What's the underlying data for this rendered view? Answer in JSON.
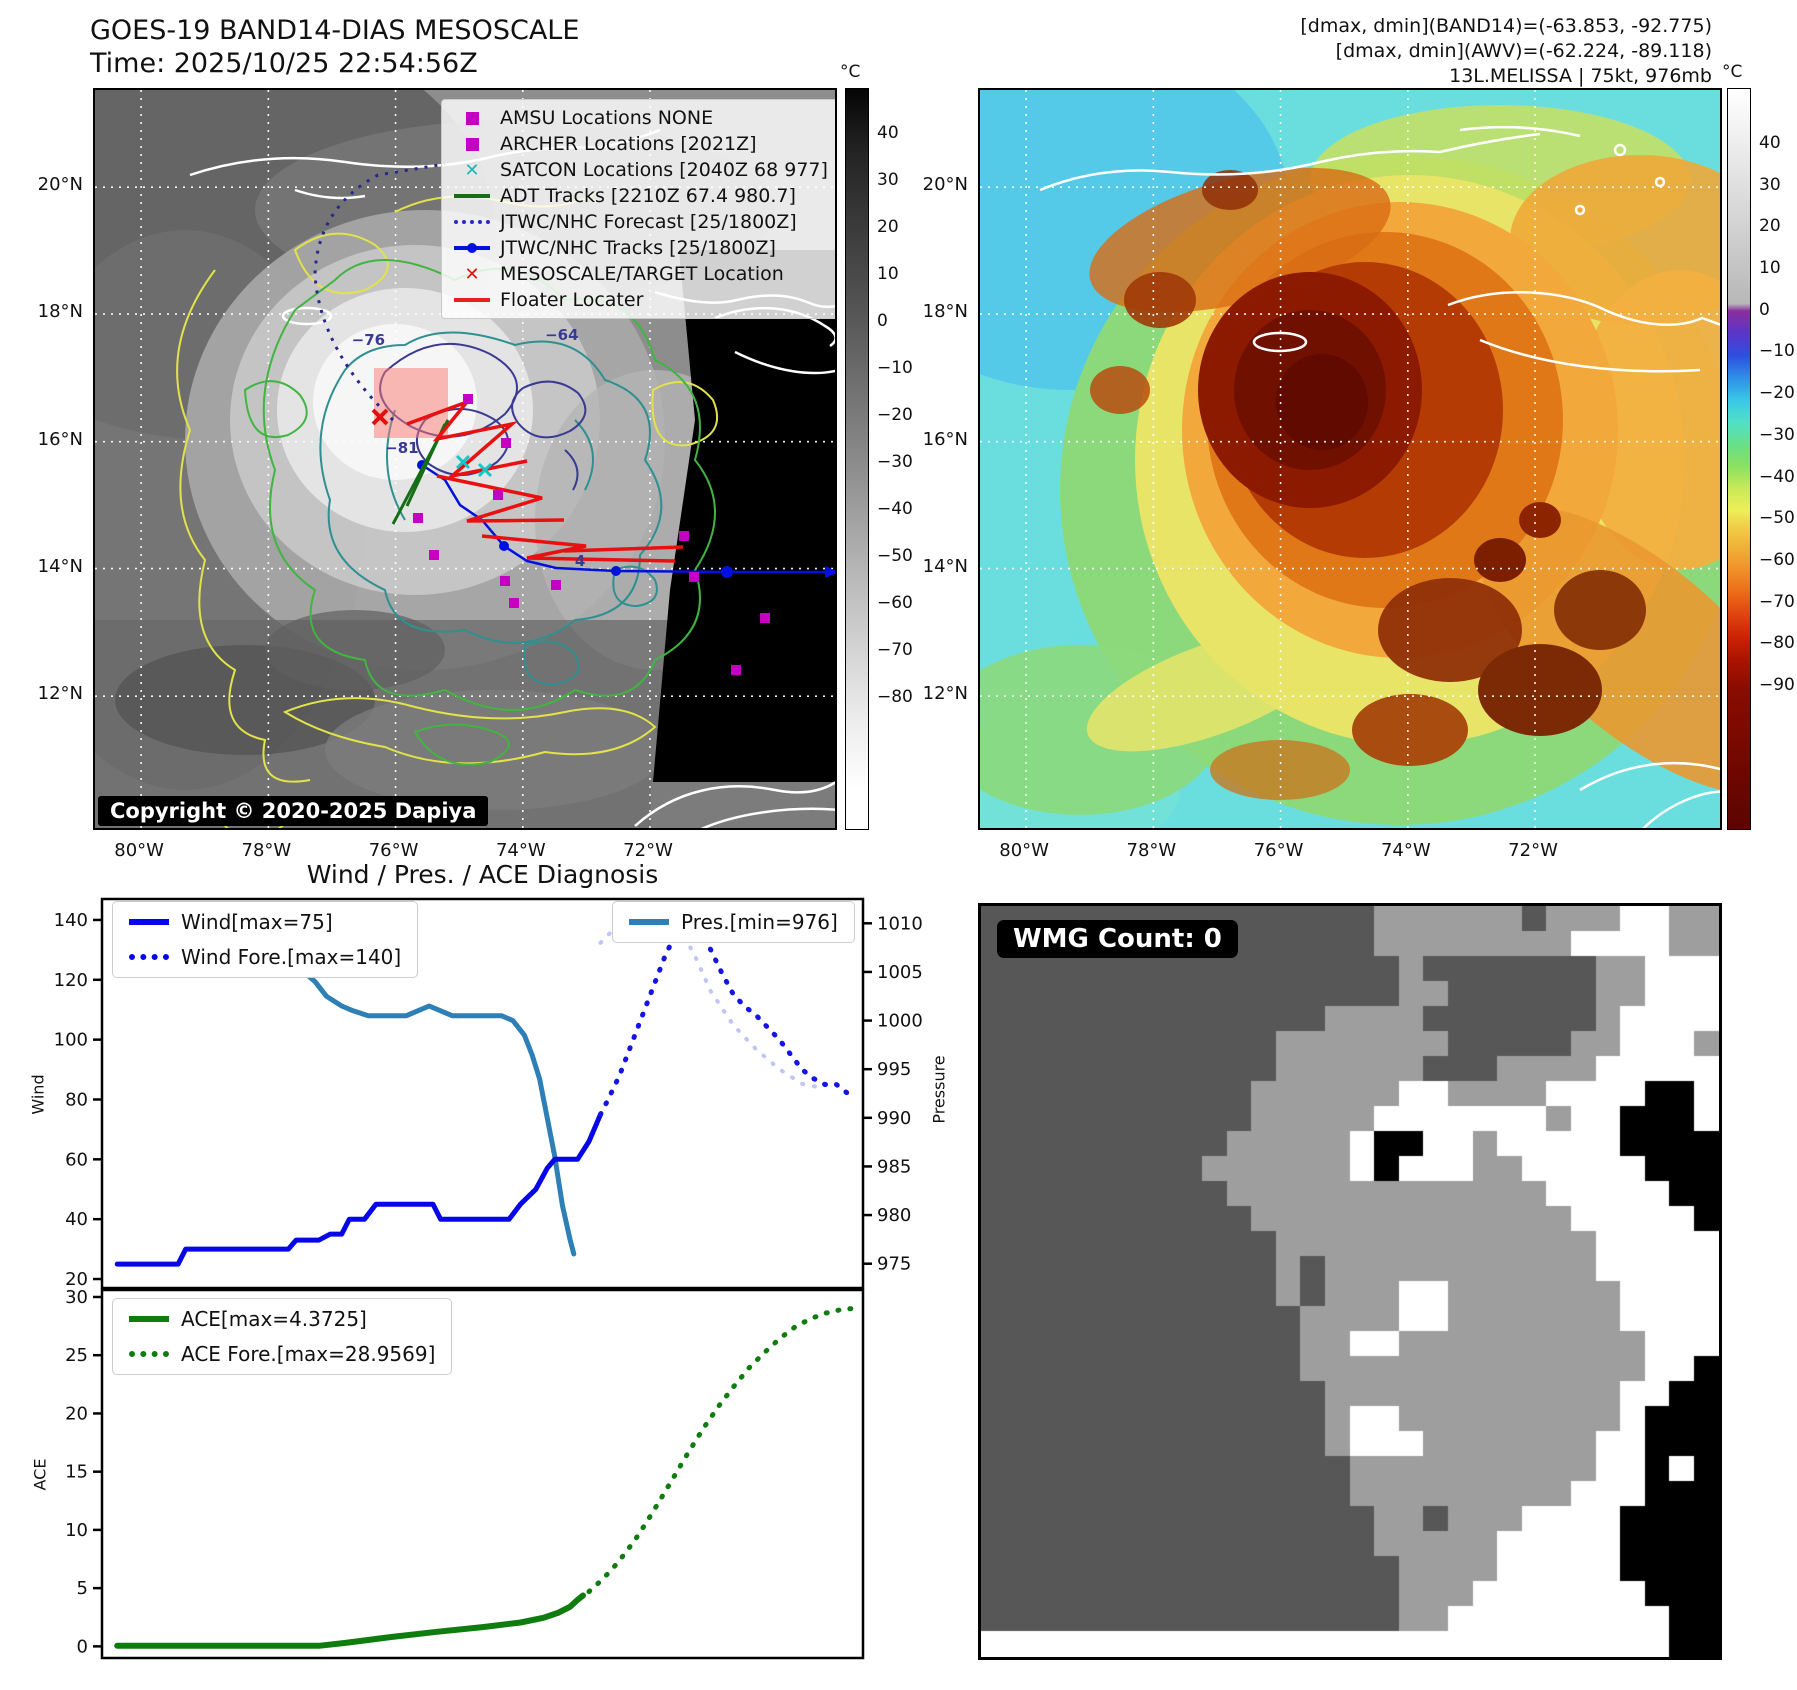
{
  "header": {
    "title_line1": "GOES-19 BAND14-DIAS MESOSCALE",
    "title_line2": "Time: 2025/10/25 22:54:56Z",
    "info_line1": "[dmax, dmin](BAND14)=(-63.853, -92.775)",
    "info_line2": "[dmax, dmin](AWV)=(-62.224, -89.118)",
    "info_line3": "13L.MELISSA | 75kt, 976mb"
  },
  "left_map": {
    "lat_ticks": [
      "20°N",
      "18°N",
      "16°N",
      "14°N",
      "12°N"
    ],
    "lon_ticks": [
      "80°W",
      "78°W",
      "76°W",
      "74°W",
      "72°W"
    ],
    "copyright": "Copyright © 2020-2025 Dapiya",
    "colorbar_title": "°C",
    "colorbar_ticks": [
      "40",
      "30",
      "20",
      "10",
      "0",
      "−10",
      "−20",
      "−30",
      "−40",
      "−50",
      "−60",
      "−70",
      "−80"
    ],
    "legend": [
      {
        "marker": "square",
        "color": "#c400c4",
        "label": "AMSU Locations NONE"
      },
      {
        "marker": "square",
        "color": "#c400c4",
        "label": "ARCHER Locations [2021Z]"
      },
      {
        "marker": "x",
        "color": "#18b8b8",
        "label": "SATCON Locations [2040Z 68 977]"
      },
      {
        "marker": "line",
        "color": "#156e15",
        "label": "ADT Tracks [2210Z 67.4 980.7]"
      },
      {
        "marker": "dashline",
        "color": "#2828c8",
        "label": "JTWC/NHC Forecast [25/1800Z]"
      },
      {
        "marker": "linedot",
        "color": "#0010dd",
        "label": "JTWC/NHC Tracks [25/1800Z]"
      },
      {
        "marker": "x",
        "color": "#e01010",
        "label": "MESOSCALE/TARGET Location"
      },
      {
        "marker": "line",
        "color": "#e82020",
        "label": "Floater Locater"
      }
    ],
    "contour_labels": [
      {
        "text": "−76",
        "fx": 0.345,
        "fy": 0.325
      },
      {
        "text": "−81",
        "fx": 0.39,
        "fy": 0.47
      },
      {
        "text": "−64",
        "fx": 0.605,
        "fy": 0.318
      },
      {
        "text": "4",
        "fx": 0.645,
        "fy": 0.623
      }
    ]
  },
  "right_map": {
    "lat_ticks": [
      "20°N",
      "18°N",
      "16°N",
      "14°N",
      "12°N"
    ],
    "lon_ticks": [
      "80°W",
      "78°W",
      "76°W",
      "74°W",
      "72°W"
    ],
    "colorbar_title": "°C",
    "colorbar_ticks": [
      "40",
      "30",
      "20",
      "10",
      "0",
      "−10",
      "−20",
      "−30",
      "−40",
      "−50",
      "−60",
      "−70",
      "−80",
      "−90"
    ]
  },
  "charts": {
    "section_title": "Wind / Pres. / ACE Diagnosis"
  },
  "wmg": {
    "header": "WMG Count: 0",
    "palette": {
      "d": "#575757",
      "m": "#9e9e9e",
      "w": "#ffffff",
      "b": "#000000"
    },
    "grid": [
      "ddddddddddddddddmmmmmmdmmmwwmm",
      "ddddddddddddddddmmmmmmmmwwwwmm",
      "dddddddddddddddddmdddddddmmwww",
      "dddddddddddddddddmmddddddmmwww",
      "ddddddddddddddmmmmdddddddmwwww",
      "ddddddddddddmmmmmmmdddddmmwwwm",
      "ddddddddddddmmmmmmdddmmmmwwwww",
      "dddddddddddmmmmmmwwmmmmwwwwbbw",
      "dddddddddddmmmmmwwwwwwwmwwbbbw",
      "ddddddddddmmmmmwbbwwmwwwwwbbbb",
      "dddddddddmmmmmmwbwwwmmwwwwwbbb",
      "ddddddddddmmmmmmmmmmmmmwwwwwbb",
      "dddddddddddmmmmmmmmmmmmmwwwwwb",
      "ddddddddddddmmmmmmmmmmmmmwwwww",
      "ddddddddddddmdmmmmmmmmmmmwwwww",
      "ddddddddddddmdmmmwwmmmmmmmwwww",
      "dddddddddddddmmmmwwmmmmmmmwwww",
      "dddddddddddddmmwwmmmmmmmmmmwww",
      "dddddddddddddmmmmmmmmmmmmmmwwb",
      "ddddddddddddddmmmmmmmmmmmmwwbb",
      "ddddddddddddddmwwmmmmmmmmmwbbb",
      "ddddddddddddddmwwwmmmmmmmwwbbb",
      "dddddddddddddddmmmmmmmmmmwwbwb",
      "dddddddddddddddmmmmmmmmmwwwbbb",
      "ddddddddddddddddmmdmmmwwwwbbbb",
      "ddddddddddddddddmmmmmwwwwwbbbb",
      "dddddddddddddddddmmmmwwwwwbbbb",
      "dddddddddddddddddmmmwwwwwwwbbb",
      "dddddddddddddddddmmwwwwwwwwwbb",
      "wwwwwwwwwwwwwwwwwwwwwwwwwwwwbb"
    ]
  },
  "chart_data": [
    {
      "type": "line",
      "title": "Wind / Pres. / ACE Diagnosis",
      "x_range": [
        0,
        1
      ],
      "axes": {
        "left": {
          "label": "Wind",
          "lim": [
            17,
            147
          ],
          "ticks": [
            20,
            40,
            60,
            80,
            100,
            120,
            140
          ]
        },
        "right": {
          "label": "Pressure",
          "lim": [
            972.5,
            1012.5
          ],
          "ticks": [
            975,
            980,
            985,
            990,
            995,
            1000,
            1005,
            1010
          ]
        }
      },
      "legend_left": [
        {
          "label": "Wind[max=75]",
          "color": "#0606e8",
          "style": "solid"
        },
        {
          "label": "Wind Fore.[max=140]",
          "color": "#0606e8",
          "style": "dotted"
        }
      ],
      "legend_right": [
        {
          "label": "Pres.[min=976]",
          "color": "#2d7fb5",
          "style": "solid"
        }
      ],
      "series": [
        {
          "name": "Pres.",
          "axis": "right",
          "color": "#2d7fb5",
          "dash": "none",
          "width": 5,
          "opacity": 1,
          "points": [
            [
              0.02,
              1010.5
            ],
            [
              0.115,
              1010.5
            ],
            [
              0.125,
              1009
            ],
            [
              0.165,
              1009
            ],
            [
              0.175,
              1008
            ],
            [
              0.21,
              1008
            ],
            [
              0.22,
              1007
            ],
            [
              0.245,
              1006
            ],
            [
              0.265,
              1005
            ],
            [
              0.28,
              1004
            ],
            [
              0.295,
              1002.5
            ],
            [
              0.315,
              1001.5
            ],
            [
              0.33,
              1001
            ],
            [
              0.35,
              1000.5
            ],
            [
              0.4,
              1000.5
            ],
            [
              0.415,
              1001
            ],
            [
              0.43,
              1001.5
            ],
            [
              0.445,
              1001
            ],
            [
              0.46,
              1000.5
            ],
            [
              0.525,
              1000.5
            ],
            [
              0.54,
              1000
            ],
            [
              0.555,
              998.5
            ],
            [
              0.565,
              996.5
            ],
            [
              0.575,
              994
            ],
            [
              0.585,
              990
            ],
            [
              0.595,
              986
            ],
            [
              0.605,
              981
            ],
            [
              0.615,
              977.5
            ],
            [
              0.62,
              976
            ]
          ]
        },
        {
          "name": "Pres. Fore.",
          "axis": "right",
          "color": "#b4bcf4",
          "dash": "dot",
          "width": 4,
          "opacity": 0.85,
          "points": [
            [
              0.655,
              1008
            ],
            [
              0.68,
              1010
            ],
            [
              0.7,
              1011
            ],
            [
              0.72,
              1011.5
            ],
            [
              0.74,
              1011
            ],
            [
              0.76,
              1009.5
            ],
            [
              0.78,
              1006.5
            ],
            [
              0.8,
              1003
            ],
            [
              0.83,
              999.5
            ],
            [
              0.86,
              997
            ],
            [
              0.89,
              995
            ],
            [
              0.92,
              993.5
            ],
            [
              0.95,
              993
            ]
          ]
        },
        {
          "name": "Wind",
          "axis": "left",
          "color": "#0606e8",
          "dash": "none",
          "width": 5,
          "opacity": 1,
          "points": [
            [
              0.02,
              25
            ],
            [
              0.1,
              25
            ],
            [
              0.11,
              30
            ],
            [
              0.245,
              30
            ],
            [
              0.255,
              33
            ],
            [
              0.285,
              33
            ],
            [
              0.3,
              35
            ],
            [
              0.315,
              35
            ],
            [
              0.325,
              40
            ],
            [
              0.345,
              40
            ],
            [
              0.36,
              45
            ],
            [
              0.435,
              45
            ],
            [
              0.445,
              40
            ],
            [
              0.535,
              40
            ],
            [
              0.55,
              45
            ],
            [
              0.57,
              50
            ],
            [
              0.585,
              57
            ],
            [
              0.595,
              60
            ],
            [
              0.625,
              60
            ],
            [
              0.64,
              66
            ],
            [
              0.65,
              72
            ],
            [
              0.655,
              75
            ]
          ]
        },
        {
          "name": "Wind Fore.",
          "axis": "left",
          "color": "#1414e6",
          "dash": "dot",
          "width": 5,
          "opacity": 1,
          "points": [
            [
              0.655,
              75
            ],
            [
              0.665,
              80
            ],
            [
              0.68,
              88
            ],
            [
              0.695,
              98
            ],
            [
              0.71,
              108
            ],
            [
              0.725,
              118
            ],
            [
              0.74,
              128
            ],
            [
              0.755,
              136
            ],
            [
              0.77,
              140
            ],
            [
              0.785,
              137
            ],
            [
              0.8,
              130
            ],
            [
              0.815,
              122
            ],
            [
              0.83,
              115
            ],
            [
              0.845,
              111
            ],
            [
              0.86,
              108
            ],
            [
              0.875,
              104
            ],
            [
              0.89,
              100
            ],
            [
              0.905,
              95
            ],
            [
              0.92,
              90
            ],
            [
              0.935,
              87
            ],
            [
              0.95,
              85
            ],
            [
              0.965,
              85
            ],
            [
              0.98,
              82
            ]
          ]
        }
      ]
    },
    {
      "type": "line",
      "title": "ACE",
      "x_range": [
        0,
        1
      ],
      "axes": {
        "left": {
          "label": "ACE",
          "lim": [
            -1,
            30.6
          ],
          "ticks": [
            0,
            5,
            10,
            15,
            20,
            25,
            30
          ]
        }
      },
      "legend_left": [
        {
          "label": "ACE[max=4.3725]",
          "color": "#0e7d0e",
          "style": "solid"
        },
        {
          "label": "ACE Fore.[max=28.9569]",
          "color": "#0e7d0e",
          "style": "dotted"
        }
      ],
      "series": [
        {
          "name": "ACE",
          "axis": "left",
          "color": "#0e7d0e",
          "dash": "none",
          "width": 6,
          "opacity": 1,
          "points": [
            [
              0.02,
              0.05
            ],
            [
              0.285,
              0.05
            ],
            [
              0.32,
              0.3
            ],
            [
              0.38,
              0.8
            ],
            [
              0.44,
              1.25
            ],
            [
              0.5,
              1.65
            ],
            [
              0.55,
              2.05
            ],
            [
              0.58,
              2.45
            ],
            [
              0.6,
              2.9
            ],
            [
              0.615,
              3.4
            ],
            [
              0.625,
              4.0
            ],
            [
              0.632,
              4.37
            ]
          ]
        },
        {
          "name": "ACE Fore.",
          "axis": "left",
          "color": "#0e7d0e",
          "dash": "dot",
          "width": 5,
          "opacity": 1,
          "points": [
            [
              0.64,
              4.7
            ],
            [
              0.655,
              5.6
            ],
            [
              0.67,
              6.6
            ],
            [
              0.685,
              7.8
            ],
            [
              0.7,
              9.1
            ],
            [
              0.715,
              10.6
            ],
            [
              0.73,
              12.2
            ],
            [
              0.75,
              14.4
            ],
            [
              0.77,
              16.6
            ],
            [
              0.79,
              18.7
            ],
            [
              0.81,
              20.6
            ],
            [
              0.83,
              22.3
            ],
            [
              0.85,
              23.9
            ],
            [
              0.87,
              25.2
            ],
            [
              0.89,
              26.4
            ],
            [
              0.91,
              27.4
            ],
            [
              0.93,
              28.1
            ],
            [
              0.95,
              28.6
            ],
            [
              0.97,
              28.9
            ],
            [
              0.985,
              29.0
            ]
          ]
        }
      ]
    }
  ]
}
